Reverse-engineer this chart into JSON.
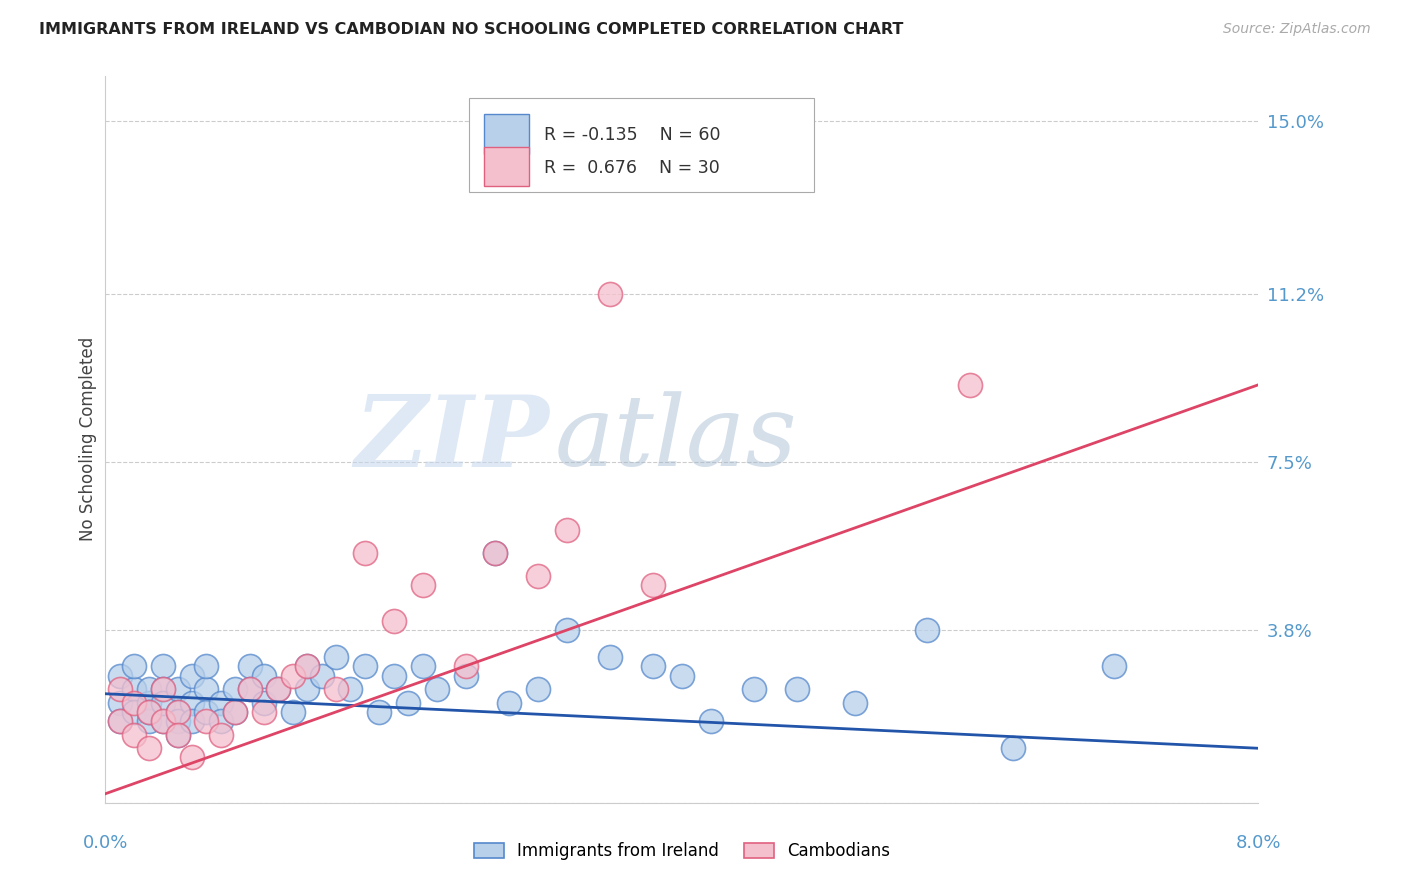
{
  "title": "IMMIGRANTS FROM IRELAND VS CAMBODIAN NO SCHOOLING COMPLETED CORRELATION CHART",
  "source": "Source: ZipAtlas.com",
  "xlabel_bottom_left": "0.0%",
  "xlabel_bottom_right": "8.0%",
  "ylabel": "No Schooling Completed",
  "yticks": [
    0.0,
    0.038,
    0.075,
    0.112,
    0.15
  ],
  "ytick_labels": [
    "",
    "3.8%",
    "7.5%",
    "11.2%",
    "15.0%"
  ],
  "xlim": [
    0.0,
    0.08
  ],
  "ylim": [
    0.0,
    0.16
  ],
  "series1_label": "Immigrants from Ireland",
  "series1_color": "#b8d0ea",
  "series1_edge_color": "#5588cc",
  "series1_R": -0.135,
  "series1_N": 60,
  "series2_label": "Cambodians",
  "series2_color": "#f5c0ce",
  "series2_edge_color": "#e06080",
  "series2_R": 0.676,
  "series2_N": 30,
  "trend1_color": "#2255aa",
  "trend2_color": "#dd4466",
  "background_color": "#ffffff",
  "grid_color": "#cccccc",
  "axis_label_color": "#5599cc",
  "watermark_zip": "ZIP",
  "watermark_atlas": "atlas",
  "ireland_x": [
    0.001,
    0.001,
    0.001,
    0.002,
    0.002,
    0.002,
    0.003,
    0.003,
    0.003,
    0.003,
    0.004,
    0.004,
    0.004,
    0.004,
    0.005,
    0.005,
    0.005,
    0.005,
    0.006,
    0.006,
    0.006,
    0.007,
    0.007,
    0.007,
    0.008,
    0.008,
    0.009,
    0.009,
    0.01,
    0.01,
    0.011,
    0.011,
    0.012,
    0.013,
    0.014,
    0.014,
    0.015,
    0.016,
    0.017,
    0.018,
    0.019,
    0.02,
    0.021,
    0.022,
    0.023,
    0.025,
    0.027,
    0.028,
    0.03,
    0.032,
    0.035,
    0.038,
    0.04,
    0.042,
    0.045,
    0.048,
    0.052,
    0.057,
    0.063,
    0.07
  ],
  "ireland_y": [
    0.022,
    0.028,
    0.018,
    0.025,
    0.02,
    0.03,
    0.022,
    0.018,
    0.025,
    0.02,
    0.03,
    0.025,
    0.018,
    0.022,
    0.025,
    0.02,
    0.018,
    0.015,
    0.028,
    0.022,
    0.018,
    0.025,
    0.02,
    0.03,
    0.022,
    0.018,
    0.025,
    0.02,
    0.03,
    0.025,
    0.028,
    0.022,
    0.025,
    0.02,
    0.03,
    0.025,
    0.028,
    0.032,
    0.025,
    0.03,
    0.02,
    0.028,
    0.022,
    0.03,
    0.025,
    0.028,
    0.055,
    0.022,
    0.025,
    0.038,
    0.032,
    0.03,
    0.028,
    0.018,
    0.025,
    0.025,
    0.022,
    0.038,
    0.012,
    0.03
  ],
  "cambodian_x": [
    0.001,
    0.001,
    0.002,
    0.002,
    0.003,
    0.003,
    0.004,
    0.004,
    0.005,
    0.005,
    0.006,
    0.007,
    0.008,
    0.009,
    0.01,
    0.011,
    0.012,
    0.013,
    0.014,
    0.016,
    0.018,
    0.02,
    0.022,
    0.025,
    0.027,
    0.03,
    0.032,
    0.035,
    0.038,
    0.06
  ],
  "cambodian_y": [
    0.025,
    0.018,
    0.022,
    0.015,
    0.02,
    0.012,
    0.025,
    0.018,
    0.02,
    0.015,
    0.01,
    0.018,
    0.015,
    0.02,
    0.025,
    0.02,
    0.025,
    0.028,
    0.03,
    0.025,
    0.055,
    0.04,
    0.048,
    0.03,
    0.055,
    0.05,
    0.06,
    0.112,
    0.048,
    0.092
  ],
  "trend1_x0": 0.0,
  "trend1_y0": 0.024,
  "trend1_x1": 0.08,
  "trend1_y1": 0.012,
  "trend2_x0": 0.0,
  "trend2_y0": 0.002,
  "trend2_x1": 0.08,
  "trend2_y1": 0.092
}
